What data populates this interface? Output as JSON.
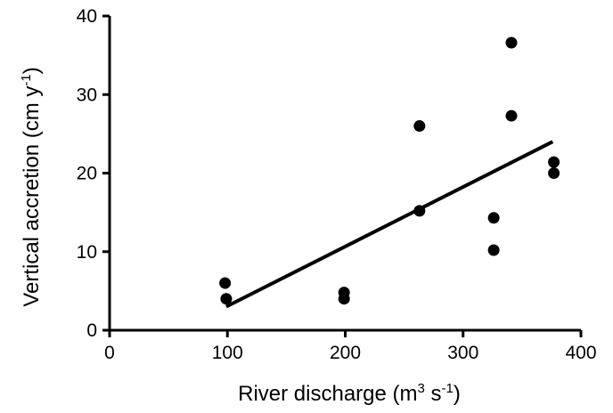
{
  "chart_data": {
    "type": "scatter",
    "title": "",
    "xlabel": {
      "main": "River discharge (m",
      "sup1": "3",
      "mid": " s",
      "sup2": "-1",
      "end": ")"
    },
    "ylabel": {
      "main": "Vertical accretion (cm y",
      "sup": "-1",
      "end": ")"
    },
    "xlim": [
      0,
      400
    ],
    "ylim": [
      0,
      40
    ],
    "xticks": [
      0,
      100,
      200,
      300,
      400
    ],
    "yticks": [
      0,
      10,
      20,
      30,
      40
    ],
    "xtick_labels": [
      "0",
      "100",
      "200",
      "300",
      "400"
    ],
    "ytick_labels": [
      "0",
      "10",
      "20",
      "30",
      "40"
    ],
    "grid": false,
    "points": [
      {
        "x": 98,
        "y": 6.0
      },
      {
        "x": 99,
        "y": 4.0
      },
      {
        "x": 199,
        "y": 4.8
      },
      {
        "x": 199,
        "y": 4.0
      },
      {
        "x": 263,
        "y": 26.0
      },
      {
        "x": 263,
        "y": 15.2
      },
      {
        "x": 326,
        "y": 14.3
      },
      {
        "x": 326,
        "y": 10.2
      },
      {
        "x": 341,
        "y": 36.6
      },
      {
        "x": 341,
        "y": 27.3
      },
      {
        "x": 377,
        "y": 21.4
      },
      {
        "x": 377,
        "y": 20.0
      }
    ],
    "fit_line": {
      "x1": 99,
      "y1": 3.0,
      "x2": 376,
      "y2": 24.0
    }
  }
}
